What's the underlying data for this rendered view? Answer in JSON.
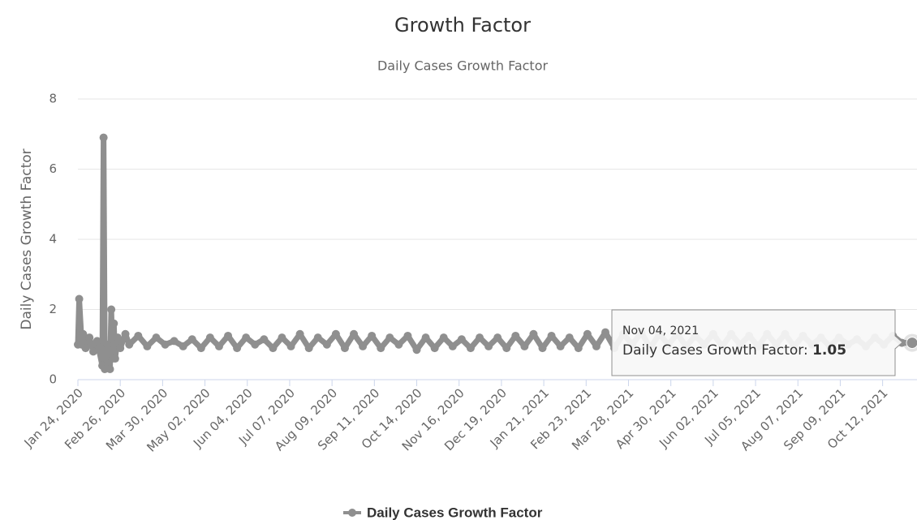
{
  "chart_data": {
    "type": "line",
    "title": "Growth Factor",
    "subtitle": "Daily Cases Growth Factor",
    "y_axis_label": "Daily Cases Growth Factor",
    "ylim": [
      0,
      8
    ],
    "yticks": [
      0,
      2,
      4,
      6,
      8
    ],
    "grid": true,
    "legend": "bottom",
    "xlim": [
      "2020-01-24",
      "2021-11-04"
    ],
    "xticks": [
      {
        "value": "2020-01-24",
        "label": "Jan 24, 2020"
      },
      {
        "value": "2020-02-26",
        "label": "Feb 26, 2020"
      },
      {
        "value": "2020-03-30",
        "label": "Mar 30, 2020"
      },
      {
        "value": "2020-05-02",
        "label": "May 02, 2020"
      },
      {
        "value": "2020-06-04",
        "label": "Jun 04, 2020"
      },
      {
        "value": "2020-07-07",
        "label": "Jul 07, 2020"
      },
      {
        "value": "2020-08-09",
        "label": "Aug 09, 2020"
      },
      {
        "value": "2020-09-11",
        "label": "Sep 11, 2020"
      },
      {
        "value": "2020-10-14",
        "label": "Oct 14, 2020"
      },
      {
        "value": "2020-11-16",
        "label": "Nov 16, 2020"
      },
      {
        "value": "2020-12-19",
        "label": "Dec 19, 2020"
      },
      {
        "value": "2021-01-21",
        "label": "Jan 21, 2021"
      },
      {
        "value": "2021-02-23",
        "label": "Feb 23, 2021"
      },
      {
        "value": "2021-03-28",
        "label": "Mar 28, 2021"
      },
      {
        "value": "2021-04-30",
        "label": "Apr 30, 2021"
      },
      {
        "value": "2021-06-02",
        "label": "Jun 02, 2021"
      },
      {
        "value": "2021-07-05",
        "label": "Jul 05, 2021"
      },
      {
        "value": "2021-08-07",
        "label": "Aug 07, 2021"
      },
      {
        "value": "2021-09-09",
        "label": "Sep 09, 2021"
      },
      {
        "value": "2021-10-12",
        "label": "Oct 12, 2021"
      }
    ],
    "x": [
      "2020-01-24",
      "2020-01-25",
      "2020-01-27",
      "2020-01-28",
      "2020-01-30",
      "2020-02-02",
      "2020-02-05",
      "2020-02-08",
      "2020-02-12",
      "2020-02-13",
      "2020-02-14",
      "2020-02-16",
      "2020-02-18",
      "2020-02-19",
      "2020-02-20",
      "2020-02-21",
      "2020-02-22",
      "2020-02-24",
      "2020-02-26",
      "2020-03-01",
      "2020-03-04",
      "2020-03-11",
      "2020-03-18",
      "2020-03-25",
      "2020-04-01",
      "2020-04-08",
      "2020-04-15",
      "2020-04-22",
      "2020-04-29",
      "2020-05-06",
      "2020-05-13",
      "2020-05-20",
      "2020-05-27",
      "2020-06-03",
      "2020-06-10",
      "2020-06-17",
      "2020-06-24",
      "2020-07-01",
      "2020-07-08",
      "2020-07-15",
      "2020-07-22",
      "2020-07-29",
      "2020-08-05",
      "2020-08-12",
      "2020-08-19",
      "2020-08-26",
      "2020-09-02",
      "2020-09-09",
      "2020-09-16",
      "2020-09-23",
      "2020-09-30",
      "2020-10-07",
      "2020-10-14",
      "2020-10-21",
      "2020-10-28",
      "2020-11-04",
      "2020-11-11",
      "2020-11-18",
      "2020-11-25",
      "2020-12-02",
      "2020-12-09",
      "2020-12-16",
      "2020-12-23",
      "2020-12-30",
      "2021-01-06",
      "2021-01-13",
      "2021-01-20",
      "2021-01-27",
      "2021-02-03",
      "2021-02-10",
      "2021-02-17",
      "2021-02-24",
      "2021-03-03",
      "2021-03-10",
      "2021-03-17",
      "2021-03-24",
      "2021-03-31",
      "2021-04-07",
      "2021-04-14",
      "2021-04-21",
      "2021-04-28",
      "2021-05-05",
      "2021-05-12",
      "2021-05-19",
      "2021-05-26",
      "2021-06-02",
      "2021-06-09",
      "2021-06-16",
      "2021-06-23",
      "2021-06-30",
      "2021-07-07",
      "2021-07-14",
      "2021-07-21",
      "2021-07-28",
      "2021-08-04",
      "2021-08-11",
      "2021-08-18",
      "2021-08-25",
      "2021-09-01",
      "2021-09-08",
      "2021-09-15",
      "2021-09-22",
      "2021-09-29",
      "2021-10-06",
      "2021-10-13",
      "2021-10-20",
      "2021-10-27",
      "2021-11-04"
    ],
    "series": [
      {
        "name": "Daily Cases Growth Factor",
        "color": "#8f8f8f",
        "values": [
          1.0,
          2.3,
          1.0,
          1.3,
          0.9,
          1.2,
          0.8,
          1.1,
          0.4,
          6.9,
          0.3,
          1.0,
          0.3,
          2.0,
          0.6,
          1.6,
          0.6,
          1.2,
          0.9,
          1.3,
          1.0,
          1.25,
          0.95,
          1.2,
          1.0,
          1.1,
          0.95,
          1.15,
          0.9,
          1.2,
          0.95,
          1.25,
          0.9,
          1.2,
          1.0,
          1.15,
          0.9,
          1.2,
          0.95,
          1.3,
          0.9,
          1.2,
          1.0,
          1.3,
          0.9,
          1.3,
          0.95,
          1.25,
          0.9,
          1.2,
          1.0,
          1.25,
          0.85,
          1.2,
          0.9,
          1.2,
          0.95,
          1.15,
          0.9,
          1.2,
          0.95,
          1.2,
          0.9,
          1.25,
          0.95,
          1.3,
          0.9,
          1.25,
          0.95,
          1.2,
          0.9,
          1.3,
          0.95,
          1.35,
          0.9,
          1.3,
          1.0,
          1.35,
          0.9,
          1.3,
          1.0,
          1.3,
          0.95,
          1.25,
          1.0,
          1.3,
          0.95,
          1.3,
          1.0,
          1.25,
          0.95,
          1.3,
          1.0,
          1.3,
          0.95,
          1.25,
          1.0,
          1.2,
          0.95,
          1.2,
          1.0,
          1.15,
          0.95,
          1.2,
          1.0,
          1.25,
          1.05,
          1.05
        ]
      }
    ],
    "tooltip": {
      "date": "Nov 04, 2021",
      "label": "Daily Cases Growth Factor:",
      "value": 1.05
    }
  }
}
